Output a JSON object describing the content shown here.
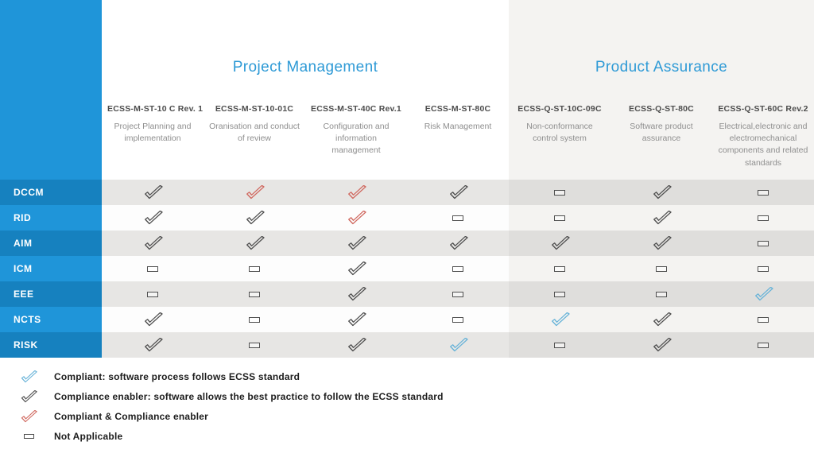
{
  "colors": {
    "sidebar_blue": "#1f95d9",
    "sidebar_blue_dark": "#1681bf",
    "section_title_blue": "#2e9ad6",
    "row_gray": "#e7e6e4",
    "row_gray_pa": "#dfdedc",
    "row_white": "#fdfdfd",
    "row_white_pa": "#f4f3f1",
    "check_enabler": "#4f4f4f",
    "check_both": "#d0685f",
    "check_compliant": "#68b3d8"
  },
  "chart_data": {
    "type": "table",
    "groups": [
      {
        "label": "Project Management"
      },
      {
        "label": "Product Assurance"
      }
    ],
    "columns": [
      {
        "code": "ECSS-M-ST-10 C Rev. 1",
        "description": "Project Planning and implementation",
        "group": "Project Management"
      },
      {
        "code": "ECSS-M-ST-10-01C",
        "description": "Oranisation and conduct of review",
        "group": "Project Management"
      },
      {
        "code": "ECSS-M-ST-40C Rev.1",
        "description": "Configuration and information management",
        "group": "Project Management"
      },
      {
        "code": "ECSS-M-ST-80C",
        "description": "Risk Management",
        "group": "Project Management"
      },
      {
        "code": "ECSS-Q-ST-10C-09C",
        "description": "Non-conformance control system",
        "group": "Product Assurance"
      },
      {
        "code": "ECSS-Q-ST-80C",
        "description": "Software product assurance",
        "group": "Product Assurance"
      },
      {
        "code": "ECSS-Q-ST-60C Rev.2",
        "description": "Electrical,electronic and electromechanical components and related standards",
        "group": "Product Assurance"
      }
    ],
    "rows": [
      {
        "label": "DCCM",
        "cells": [
          "enabler",
          "both",
          "both",
          "enabler",
          "na",
          "enabler",
          "na"
        ]
      },
      {
        "label": "RID",
        "cells": [
          "enabler",
          "enabler",
          "both",
          "na",
          "na",
          "enabler",
          "na"
        ]
      },
      {
        "label": "AIM",
        "cells": [
          "enabler",
          "enabler",
          "enabler",
          "enabler",
          "enabler",
          "enabler",
          "na"
        ]
      },
      {
        "label": "ICM",
        "cells": [
          "na",
          "na",
          "enabler",
          "na",
          "na",
          "na",
          "na"
        ]
      },
      {
        "label": "EEE",
        "cells": [
          "na",
          "na",
          "enabler",
          "na",
          "na",
          "na",
          "compliant"
        ]
      },
      {
        "label": "NCTS",
        "cells": [
          "enabler",
          "na",
          "enabler",
          "na",
          "compliant",
          "enabler",
          "na"
        ]
      },
      {
        "label": "RISK",
        "cells": [
          "enabler",
          "na",
          "enabler",
          "compliant",
          "na",
          "enabler",
          "na"
        ]
      }
    ],
    "cell_value_meanings": {
      "compliant": "blue check — Compliant",
      "enabler": "black check — Compliance enabler",
      "both": "red check — Compliant & Compliance enabler",
      "na": "dash — Not Applicable"
    }
  },
  "legend": {
    "items": [
      {
        "value": "compliant",
        "label": "Compliant: software process follows ECSS standard"
      },
      {
        "value": "enabler",
        "label": "Compliance enabler: software allows the best practice to follow the ECSS standard"
      },
      {
        "value": "both",
        "label": "Compliant & Compliance enabler"
      },
      {
        "value": "na",
        "label": "Not Applicable"
      }
    ]
  }
}
